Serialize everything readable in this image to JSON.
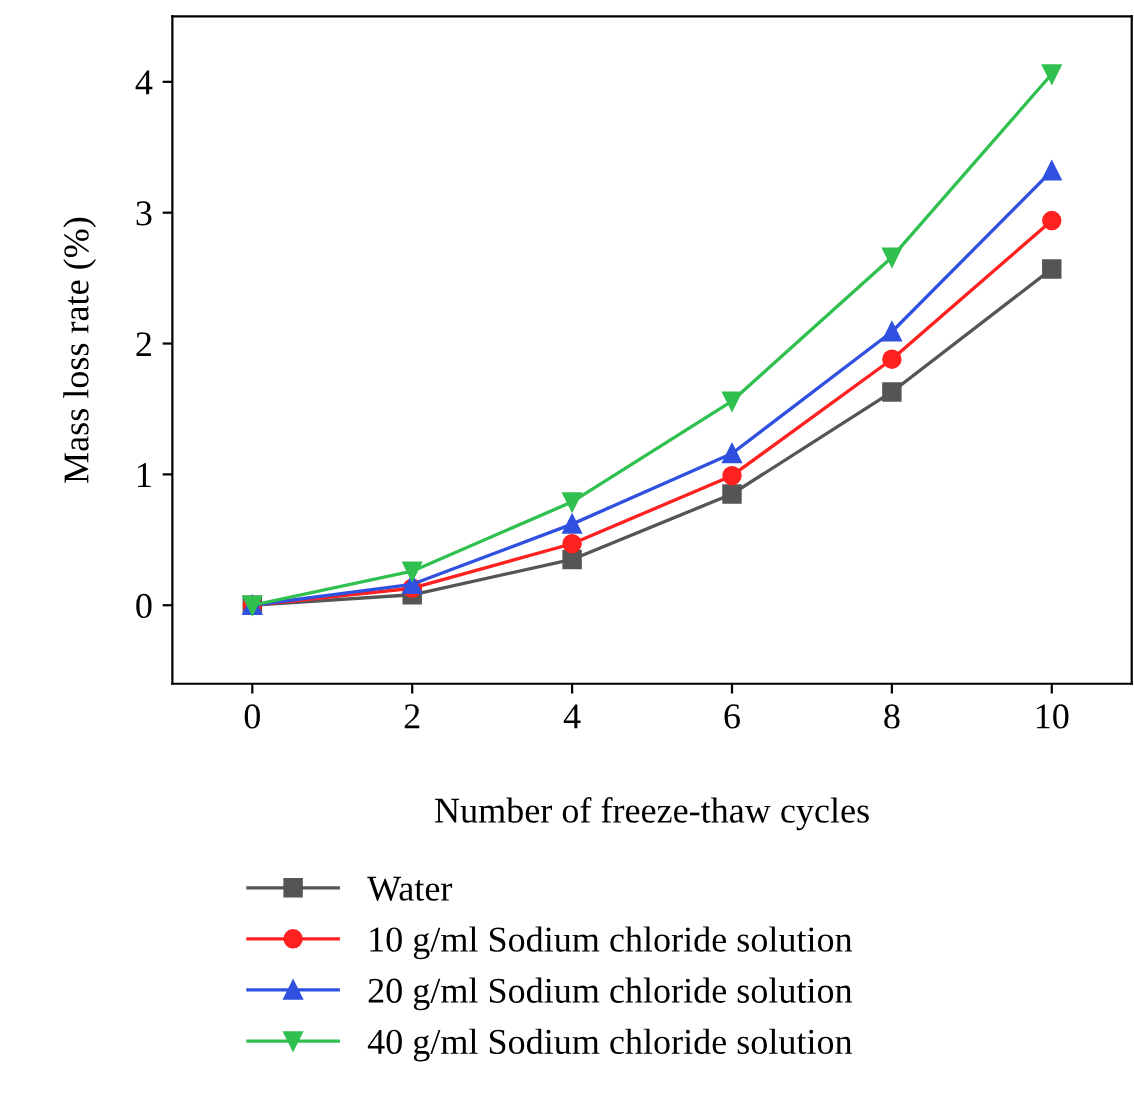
{
  "chart_data": {
    "type": "line",
    "xlabel": "Number of freeze-thaw cycles",
    "ylabel": "Mass loss rate (%)",
    "x": [
      0,
      2,
      4,
      6,
      8,
      10
    ],
    "xlim": [
      -1,
      11
    ],
    "xticks": [
      0,
      2,
      4,
      6,
      8,
      10
    ],
    "ylim": [
      -0.6,
      4.5
    ],
    "yticks": [
      0,
      1,
      2,
      3,
      4
    ],
    "grid": false,
    "legend": "bottom",
    "series": [
      {
        "name": "Water",
        "color": "#555555",
        "marker": "square",
        "values": [
          0,
          0.08,
          0.35,
          0.85,
          1.63,
          2.57
        ]
      },
      {
        "name": "10 g/ml Sodium chloride solution",
        "color": "#ff2020",
        "marker": "circle",
        "values": [
          0,
          0.13,
          0.47,
          0.99,
          1.88,
          2.94
        ]
      },
      {
        "name": "20 g/ml Sodium chloride solution",
        "color": "#3050e0",
        "marker": "triangle",
        "values": [
          0,
          0.16,
          0.62,
          1.16,
          2.09,
          3.32
        ]
      },
      {
        "name": "40 g/ml Sodium chloride solution",
        "color": "#30c050",
        "marker": "triangle_down",
        "values": [
          0,
          0.26,
          0.79,
          1.56,
          2.66,
          4.06
        ]
      }
    ]
  }
}
